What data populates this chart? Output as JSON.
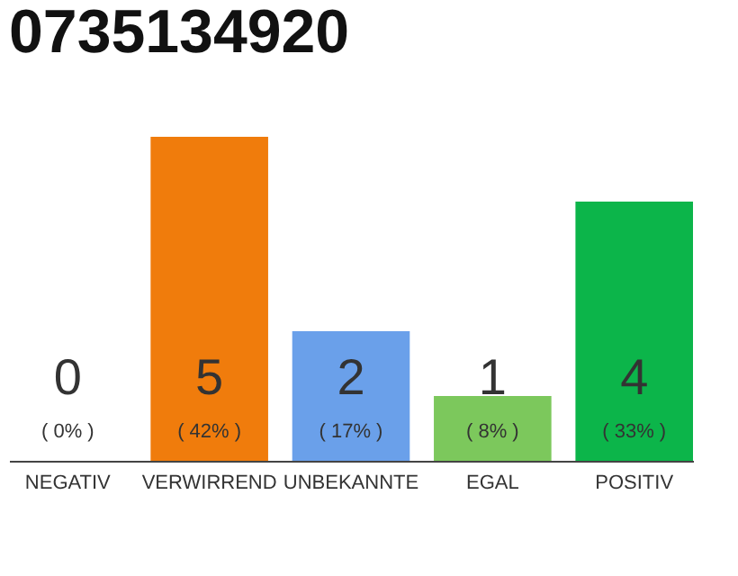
{
  "chart_data": {
    "type": "bar",
    "title": "0735134920",
    "categories": [
      "NEGATIV",
      "VERWIRREND",
      "UNBEKANNTE",
      "EGAL",
      "POSITIV"
    ],
    "values": [
      0,
      5,
      2,
      1,
      4
    ],
    "colors": [
      "#9e9e9e",
      "#f07c0c",
      "#6aa0ea",
      "#7cc85c",
      "#0cb54a"
    ],
    "data_labels": true,
    "annotations": [
      "( 0% )",
      "( 42% )",
      "( 17% )",
      "( 8% )",
      "( 33% )"
    ],
    "grid": false
  }
}
